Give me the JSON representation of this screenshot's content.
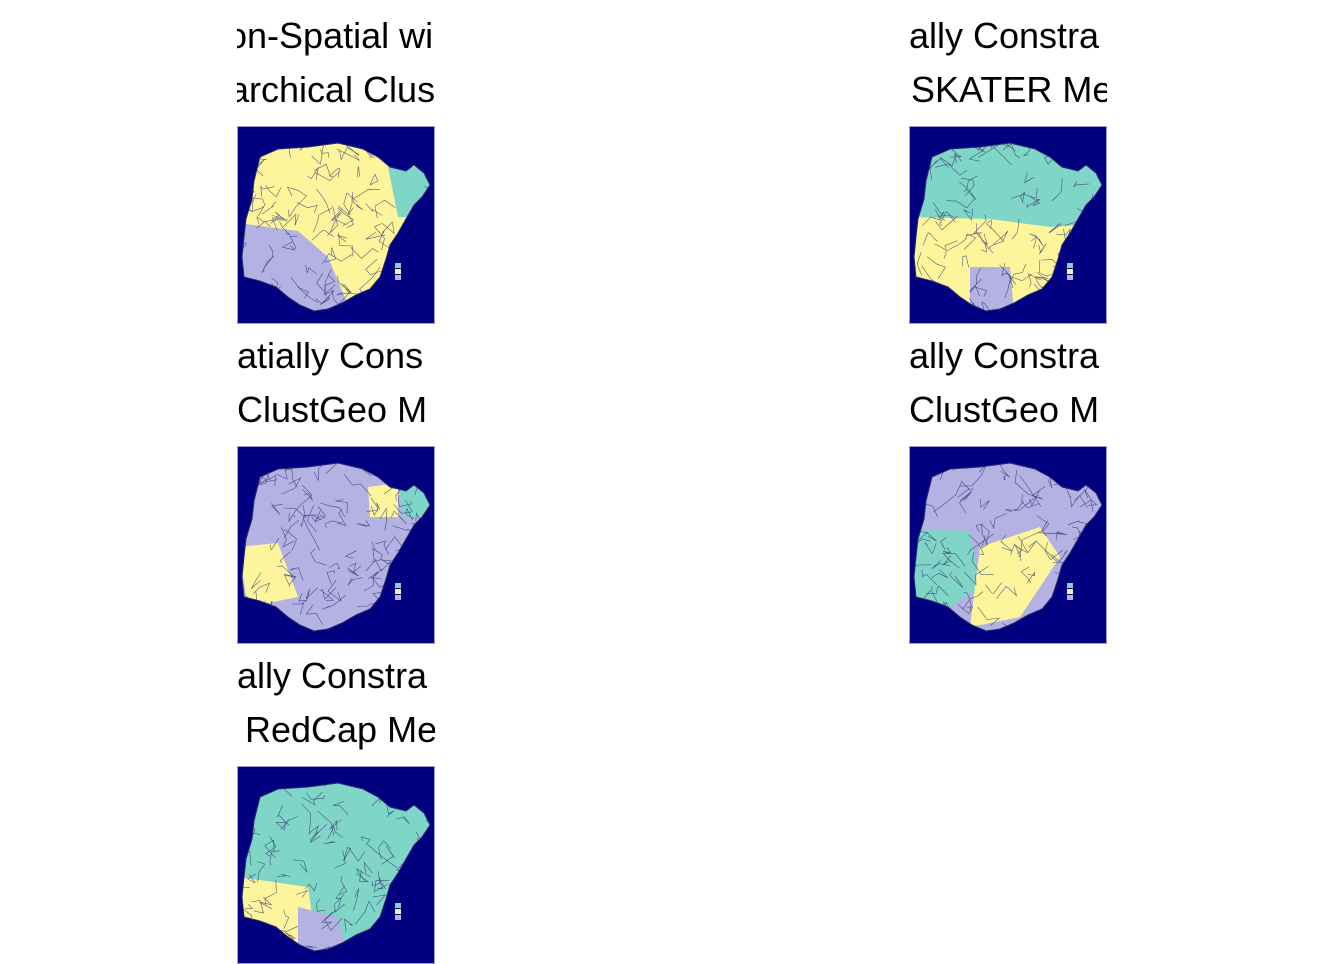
{
  "colors": {
    "background": "#000080",
    "cluster_1": "#7fd6c6",
    "cluster_2": "#fdf59b",
    "cluster_3": "#b3b2e3",
    "borders": "#2b2b6b"
  },
  "panels": [
    {
      "id": "hierarchical",
      "line1": "on-Spatial wi",
      "line2": "archical Clus",
      "dominant": "cluster_2",
      "accent": "cluster_3",
      "third": "cluster_1"
    },
    {
      "id": "skater",
      "line1": "ally Constra",
      "line2": "SKATER Me",
      "dominant": "cluster_1",
      "accent": "cluster_2",
      "third": "cluster_3"
    },
    {
      "id": "clustgeo-a",
      "line1": "atially Cons",
      "line2": "ClustGeo M",
      "dominant": "cluster_3",
      "accent": "cluster_2",
      "third": "cluster_1"
    },
    {
      "id": "clustgeo-b",
      "line1": "ally Constra",
      "line2": "ClustGeo M",
      "dominant": "cluster_3",
      "accent": "cluster_2",
      "third": "cluster_1"
    },
    {
      "id": "redcap",
      "line1": "ally Constra",
      "line2": "RedCap Me",
      "dominant": "cluster_1",
      "accent": "cluster_2",
      "third": "cluster_3"
    }
  ],
  "legend_swatches": [
    "cluster_1",
    "cluster_2",
    "cluster_3"
  ]
}
